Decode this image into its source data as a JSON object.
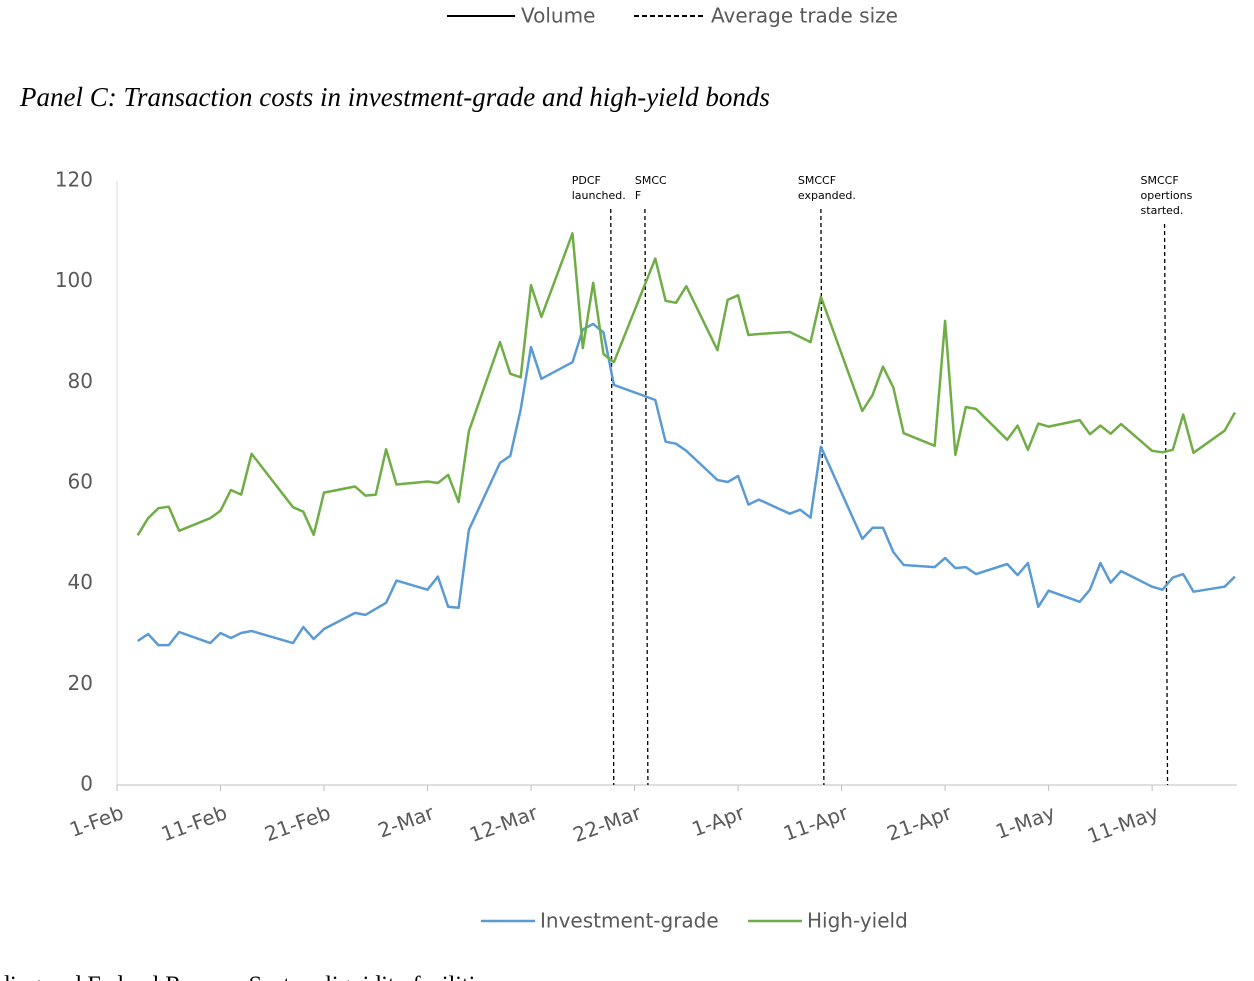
{
  "top_legend": {
    "items": [
      "Volume",
      "Average trade size"
    ]
  },
  "panel_title": "Panel C: Transaction costs in investment-grade and high-yield bonds",
  "chart_data": {
    "type": "line",
    "x": [
      2,
      3,
      4,
      5,
      6,
      9,
      10,
      11,
      12,
      13,
      17,
      18,
      19,
      20,
      23,
      24,
      25,
      26,
      27,
      30,
      31,
      32,
      33,
      34,
      37,
      38,
      39,
      40,
      41,
      44,
      45,
      46,
      47,
      48,
      52,
      53,
      54,
      55,
      58,
      59,
      60,
      61,
      62,
      65,
      66,
      67,
      68,
      72,
      73,
      74,
      75,
      76,
      79,
      80,
      81,
      82,
      83,
      86,
      87,
      88,
      89,
      90,
      93,
      94,
      95,
      96,
      97,
      100,
      101,
      102,
      103,
      104,
      107,
      108
    ],
    "series": [
      {
        "name": "Investment-grade",
        "color": "#5b9bd5",
        "values": [
          28.6,
          30,
          27.8,
          27.8,
          30.4,
          28.2,
          30.2,
          29.2,
          30.2,
          30.6,
          28.2,
          31.4,
          29,
          31,
          34.2,
          33.8,
          35,
          36.2,
          40.6,
          38.8,
          41.4,
          35.4,
          35.2,
          50.7,
          64,
          65.4,
          74.6,
          87,
          80.7,
          84,
          90.5,
          91.6,
          89.9,
          79.5,
          76.5,
          68.2,
          67.8,
          66.4,
          60.6,
          60.2,
          61.4,
          55.7,
          56.7,
          53.9,
          54.7,
          53.1,
          67.2,
          48.9,
          51.1,
          51.1,
          46.3,
          43.7,
          43.3,
          45.1,
          43.1,
          43.3,
          41.9,
          43.9,
          41.7,
          44.1,
          35.4,
          38.6,
          36.4,
          38.8,
          44.1,
          40.2,
          42.5,
          39.4,
          38.8,
          41.2,
          41.9,
          38.4,
          39.4,
          41.4
        ]
      },
      {
        "name": "High-yield",
        "color": "#70ad47",
        "values": [
          49.6,
          53,
          55,
          55.3,
          50.5,
          53,
          54.5,
          58.6,
          57.7,
          65.8,
          55.2,
          54.3,
          49.7,
          58.1,
          59.3,
          57.5,
          57.7,
          66.7,
          59.7,
          60.3,
          60,
          61.6,
          56.2,
          70.3,
          88,
          81.7,
          81,
          99.3,
          93,
          109.6,
          86.8,
          99.8,
          85.6,
          84,
          104.6,
          96.2,
          95.8,
          99.1,
          86.4,
          96.4,
          97.3,
          89.4,
          89.6,
          90,
          89,
          88,
          97,
          74.3,
          77.5,
          83.1,
          79,
          69.9,
          67.4,
          92.2,
          65.6,
          75.1,
          74.7,
          68.6,
          71.4,
          66.6,
          71.8,
          71.2,
          72.5,
          69.7,
          71.4,
          69.8,
          71.7,
          66.4,
          66.1,
          66.6,
          73.6,
          66,
          70.4,
          74
        ]
      }
    ],
    "xlim": [
      0,
      108.2
    ],
    "xticks": [
      {
        "value": 0,
        "label": "1-Feb"
      },
      {
        "value": 10,
        "label": "11-Feb"
      },
      {
        "value": 20,
        "label": "21-Feb"
      },
      {
        "value": 30,
        "label": "2-Mar"
      },
      {
        "value": 40,
        "label": "12-Mar"
      },
      {
        "value": 50,
        "label": "22-Mar"
      },
      {
        "value": 60,
        "label": "1-Apr"
      },
      {
        "value": 70,
        "label": "11-Apr"
      },
      {
        "value": 80,
        "label": "21-Apr"
      },
      {
        "value": 90,
        "label": "1-May"
      },
      {
        "value": 100,
        "label": "11-May"
      }
    ],
    "ylim": [
      0,
      120
    ],
    "yticks": [
      0,
      20,
      40,
      60,
      80,
      100,
      120
    ],
    "events": [
      {
        "x": 47.7,
        "label": [
          "PDCF",
          "launched."
        ]
      },
      {
        "x": 51,
        "label": [
          "SMCC",
          "F"
        ]
      },
      {
        "x": 68,
        "label": [
          "SMCCF",
          "expanded."
        ]
      },
      {
        "x": 101.2,
        "label": [
          "SMCCF",
          "opertions",
          "started."
        ]
      }
    ],
    "legend": "bottom"
  },
  "footer_text": "ding and Federal Reserve System liquidity facilities"
}
